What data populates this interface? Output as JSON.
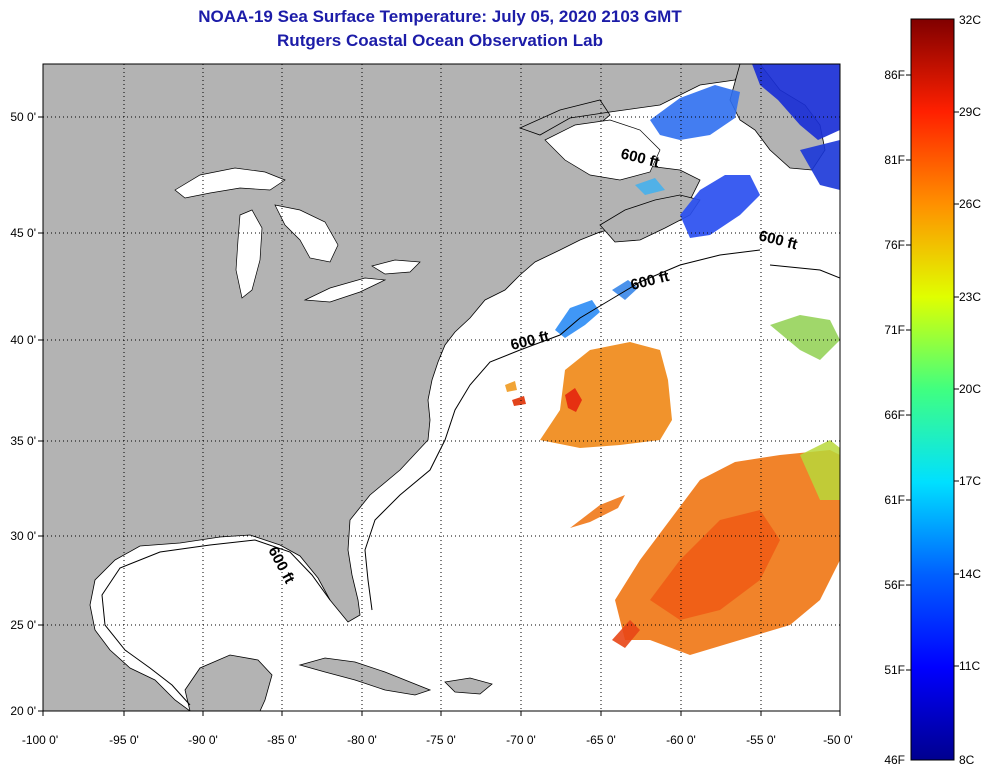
{
  "title_line1": "NOAA-19 Sea Surface Temperature:  July 05, 2020 2103 GMT",
  "title_line2": "Rutgers Coastal Ocean Observation Lab",
  "lon_ticks": [
    "-100 0'",
    "-95 0'",
    "-90 0'",
    "-85 0'",
    "-80 0'",
    "-75 0'",
    "-70 0'",
    "-65 0'",
    "-60 0'",
    "-55 0'",
    "-50 0'"
  ],
  "lat_ticks": [
    "50 0'",
    "45 0'",
    "40 0'",
    "35 0'",
    "30 0'",
    "25 0'",
    "20 0'"
  ],
  "isobath_label": "600 ft",
  "colorbar": {
    "celsius": [
      "32C",
      "29C",
      "26C",
      "23C",
      "20C",
      "17C",
      "14C",
      "11C",
      "8C"
    ],
    "fahrenheit": [
      "86F",
      "81F",
      "76F",
      "71F",
      "66F",
      "61F",
      "56F",
      "51F",
      "46F"
    ]
  },
  "colors": {
    "land": "#b3b3b3",
    "ocean": "#ffffff",
    "title": "#1c1ca8"
  }
}
